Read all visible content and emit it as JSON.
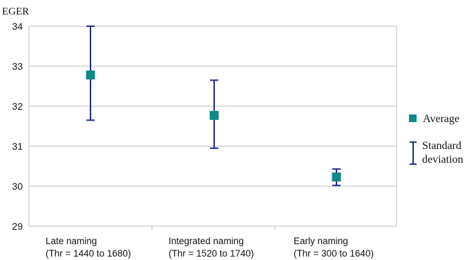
{
  "chart_data": {
    "type": "scatter",
    "ylabel": "EGER",
    "ylim": [
      29,
      34
    ],
    "yticks": [
      "34",
      "33",
      "32",
      "31",
      "30",
      "29"
    ],
    "grid": true,
    "legend_position": "right",
    "categories": [
      {
        "line1": "Late naming",
        "line2": "(Thr = 1440 to 1680)"
      },
      {
        "line1": "Integrated naming",
        "line2": "(Thr = 1520 to 1740)"
      },
      {
        "line1": "Early naming",
        "line2": "(Thr = 300 to 1640)"
      }
    ],
    "series": [
      {
        "name": "Average",
        "values": [
          32.78,
          31.77,
          30.23
        ],
        "color": "#0e8a8a"
      },
      {
        "name": "Standard deviation",
        "lower": [
          31.65,
          30.95,
          30.02
        ],
        "upper": [
          34.0,
          32.65,
          30.43
        ],
        "color": "#1f2a8c"
      }
    ],
    "legend": {
      "average": "Average",
      "std_line1": "Standard",
      "std_line2": "deviation"
    }
  }
}
